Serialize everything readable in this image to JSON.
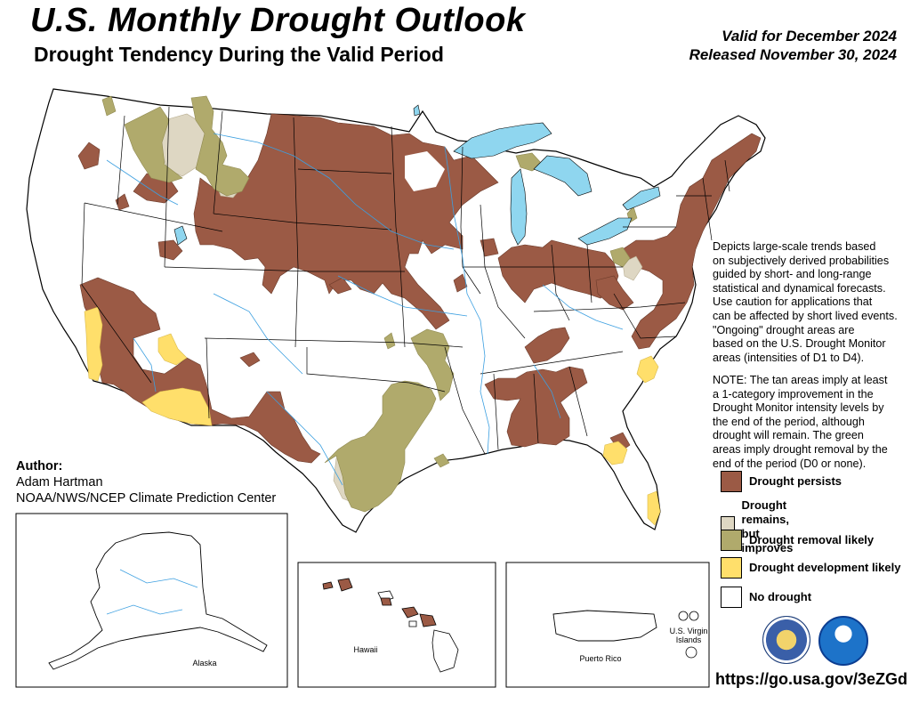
{
  "header": {
    "title": "U.S. Monthly Drought Outlook",
    "subtitle": "Drought Tendency During the Valid Period",
    "valid_for": "Valid for December 2024",
    "released": "Released November 30, 2024"
  },
  "description": [
    "Depicts large-scale trends based",
    "on subjectively derived probabilities",
    "guided by short- and long-range",
    "statistical and dynamical forecasts.",
    "Use caution for applications that",
    "can be affected by short lived events.",
    "\"Ongoing\" drought areas are",
    "based on the U.S. Drought Monitor",
    "areas (intensities of D1 to D4)."
  ],
  "note": [
    "NOTE: The tan areas imply at least",
    "a 1-category improvement in the",
    "Drought Monitor intensity levels by",
    "the end of the period, although",
    "drought will remain. The green",
    "areas imply drought removal by the",
    "end of the period (D0 or none)."
  ],
  "author": {
    "label": "Author:",
    "name": "Adam Hartman",
    "org": "NOAA/NWS/NCEP Climate Prediction Center"
  },
  "legend": [
    {
      "label": "Drought persists",
      "color": "#9b5a45"
    },
    {
      "label": "Drought remains,\nbut improves",
      "color": "#ded7c3"
    },
    {
      "label": "Drought removal likely",
      "color": "#b0aa6c"
    },
    {
      "label": "Drought development likely",
      "color": "#ffdf6b"
    },
    {
      "label": "No drought",
      "color": "#ffffff"
    }
  ],
  "insets": {
    "alaska": "Alaska",
    "hawaii": "Hawaii",
    "puerto_rico": "Puerto Rico",
    "usvi": "U.S. Virgin\nIslands"
  },
  "url": "https://go.usa.gov/3eZGd",
  "logos": [
    "doc-seal-icon",
    "noaa-logo-icon"
  ],
  "colors": {
    "water": "#8fd6ef",
    "river": "#3b9fe0",
    "border": "#000000"
  }
}
